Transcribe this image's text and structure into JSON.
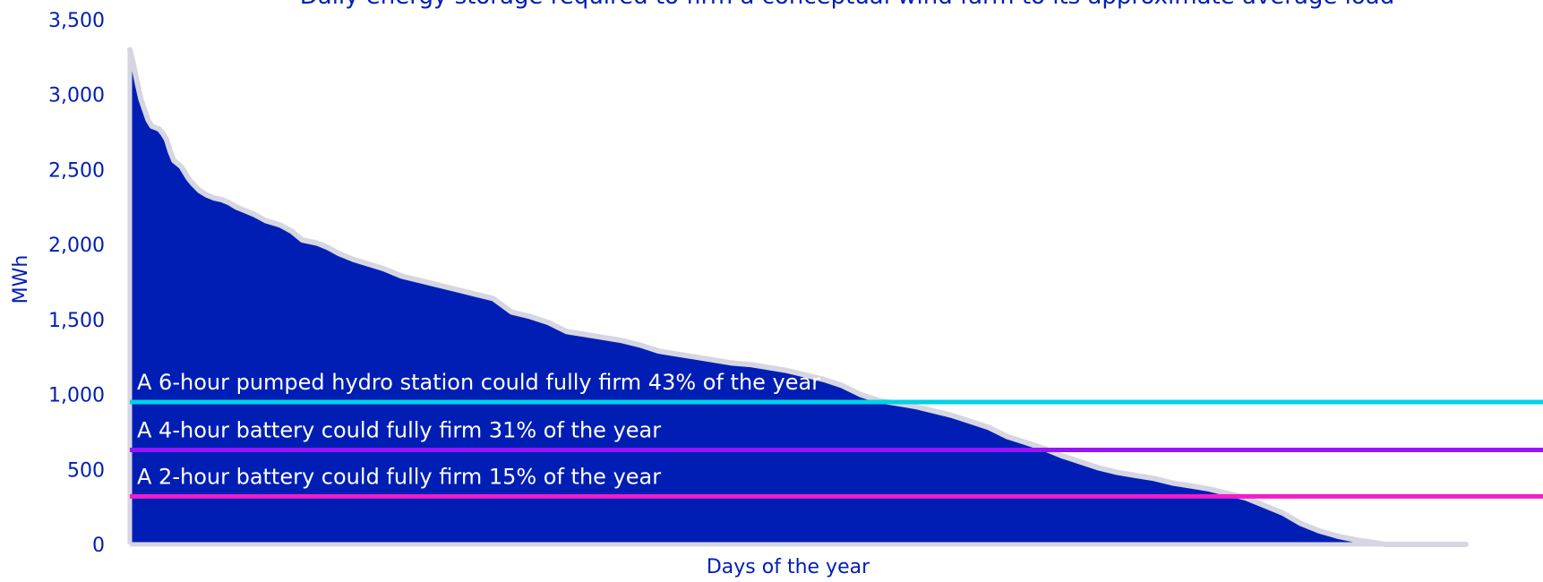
{
  "chart_data": {
    "type": "area",
    "title": "Daily energy storage required to firm a conceptual wind farm to its approximate average load",
    "xlabel": "Days of the year",
    "ylabel": "MWh",
    "ylim": [
      0,
      3500
    ],
    "xlim": [
      1,
      365
    ],
    "yticks": [
      0,
      500,
      1000,
      1500,
      2000,
      2500,
      3000,
      3500
    ],
    "ytick_labels": [
      "0",
      "500",
      "1,000",
      "1,500",
      "2,000",
      "2,500",
      "3,000",
      "3,500"
    ],
    "grid": false,
    "series": [
      {
        "color": "#001eb4",
        "outline_color": "#d6d6e2",
        "x": [
          1,
          2,
          3,
          4,
          5,
          6,
          7,
          8,
          9,
          10,
          11,
          12,
          13,
          14,
          15,
          16,
          17,
          18,
          20,
          22,
          24,
          26,
          28,
          30,
          32,
          35,
          38,
          42,
          45,
          48,
          52,
          55,
          58,
          62,
          66,
          70,
          75,
          80,
          85,
          90,
          95,
          100,
          105,
          110,
          115,
          120,
          125,
          130,
          135,
          140,
          145,
          150,
          155,
          160,
          165,
          170,
          175,
          180,
          185,
          190,
          195,
          200,
          205,
          210,
          215,
          220,
          225,
          230,
          235,
          240,
          245,
          250,
          255,
          260,
          265,
          270,
          275,
          280,
          285,
          290,
          295,
          300,
          305,
          310,
          315,
          320,
          325,
          330,
          335,
          340,
          343,
          345,
          350,
          355,
          358,
          360,
          365
        ],
        "values": [
          3300,
          3200,
          3080,
          2970,
          2900,
          2830,
          2790,
          2780,
          2770,
          2740,
          2700,
          2620,
          2560,
          2540,
          2520,
          2480,
          2440,
          2410,
          2360,
          2330,
          2310,
          2300,
          2280,
          2250,
          2230,
          2200,
          2160,
          2130,
          2090,
          2030,
          2010,
          1980,
          1940,
          1900,
          1870,
          1840,
          1790,
          1760,
          1730,
          1700,
          1670,
          1640,
          1550,
          1520,
          1480,
          1420,
          1400,
          1380,
          1360,
          1330,
          1290,
          1270,
          1250,
          1230,
          1210,
          1200,
          1180,
          1160,
          1130,
          1100,
          1060,
          1000,
          960,
          940,
          920,
          890,
          860,
          820,
          780,
          720,
          680,
          640,
          590,
          550,
          510,
          480,
          460,
          440,
          410,
          390,
          370,
          340,
          310,
          260,
          210,
          140,
          90,
          55,
          30,
          12,
          0,
          0,
          0,
          0,
          0,
          0,
          0
        ]
      }
    ],
    "reference_lines": [
      {
        "y": 950,
        "color": "#00d2e6",
        "label": "A 6-hour pumped hydro station could fully firm 43% of the year"
      },
      {
        "y": 630,
        "color": "#9614f5",
        "label": "A 4-hour battery could fully firm 31% of the year"
      },
      {
        "y": 320,
        "color": "#f01ec8",
        "label": "A 2-hour battery could fully firm 15% of the year"
      }
    ],
    "text_color": "#001eb4",
    "annotation_color": "#ffffff"
  }
}
